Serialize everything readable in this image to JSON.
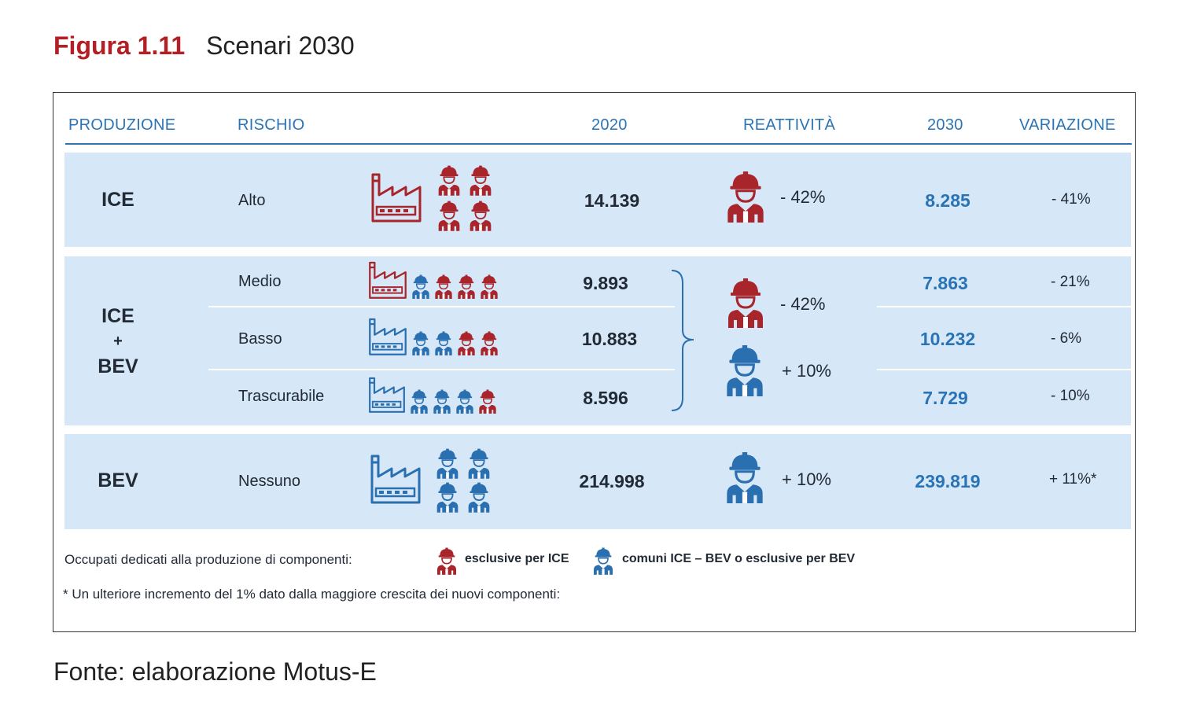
{
  "figure": {
    "number": "Figura 1.11",
    "title": "Scenari 2030"
  },
  "headers": {
    "produzione": "PRODUZIONE",
    "rischio": "RISCHIO",
    "y2020": "2020",
    "reattivita": "REATTIVITÀ",
    "y2030": "2030",
    "variazione": "VARIAZIONE"
  },
  "rows": {
    "ice": {
      "produzione": "ICE",
      "rischio": "Alto",
      "v2020": "14.139",
      "reattivita": "- 42%",
      "v2030": "8.285",
      "variazione": "- 41%"
    },
    "mixed": {
      "produzione_line1": "ICE",
      "produzione_line2": "+",
      "produzione_line3": "BEV",
      "reattivita_ice": "- 42%",
      "reattivita_bev": "+ 10%",
      "medio": {
        "rischio": "Medio",
        "v2020": "9.893",
        "v2030": "7.863",
        "variazione": "- 21%"
      },
      "basso": {
        "rischio": "Basso",
        "v2020": "10.883",
        "v2030": "10.232",
        "variazione": "- 6%"
      },
      "trascurabile": {
        "rischio": "Trascurabile",
        "v2020": "8.596",
        "v2030": "7.729",
        "variazione": "- 10%"
      }
    },
    "bev": {
      "produzione": "BEV",
      "rischio": "Nessuno",
      "v2020": "214.998",
      "reattivita": "+ 10%",
      "v2030": "239.819",
      "variazione": "+ 11%*"
    }
  },
  "legend": {
    "intro": "Occupati dedicati alla produzione di componenti:",
    "ice_label": "esclusive per ICE",
    "bev_label": "comuni ICE – BEV o esclusive per BEV"
  },
  "note": "* Un ulteriore incremento del 1% dato dalla maggiore crescita dei nuovi componenti:",
  "source": "Fonte: elaborazione Motus-E",
  "colors": {
    "red": "#a8252b",
    "blue": "#2a6fb0",
    "band": "#d6e8f7",
    "title_red": "#b31f24"
  },
  "icons": {
    "factory": "factory-icon",
    "worker": "worker-icon"
  }
}
